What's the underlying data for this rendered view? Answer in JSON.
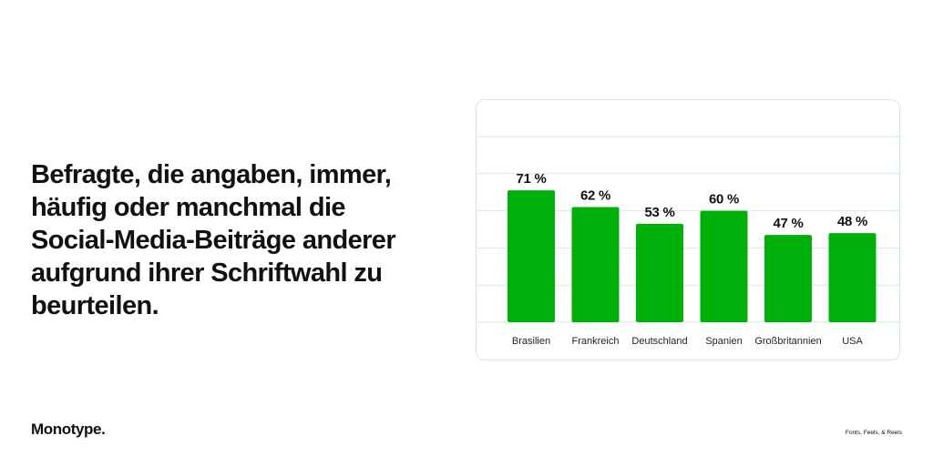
{
  "headline": "Befragte, die angaben, immer, häufig oder manchmal die Social-Media-Beiträge anderer aufgrund ihrer Schriftwahl zu beurteilen.",
  "brand": "Monotype.",
  "tagline": "Fonts, Feels, & Reels",
  "colors": {
    "bar": "#00b00a",
    "gridline": "#cfeecf",
    "card_border": "#c9efc9"
  },
  "chart_data": {
    "type": "bar",
    "title": "",
    "xlabel": "",
    "ylabel": "",
    "categories": [
      "Brasilien",
      "Frankreich",
      "Deutschland",
      "Spanien",
      "Großbritannien",
      "USA"
    ],
    "values": [
      71,
      62,
      53,
      60,
      47,
      48
    ],
    "data_labels": [
      "71 %",
      "62 %",
      "53 %",
      "60 %",
      "47 %",
      "48 %"
    ],
    "ylim": [
      0,
      100
    ],
    "grid": true
  }
}
